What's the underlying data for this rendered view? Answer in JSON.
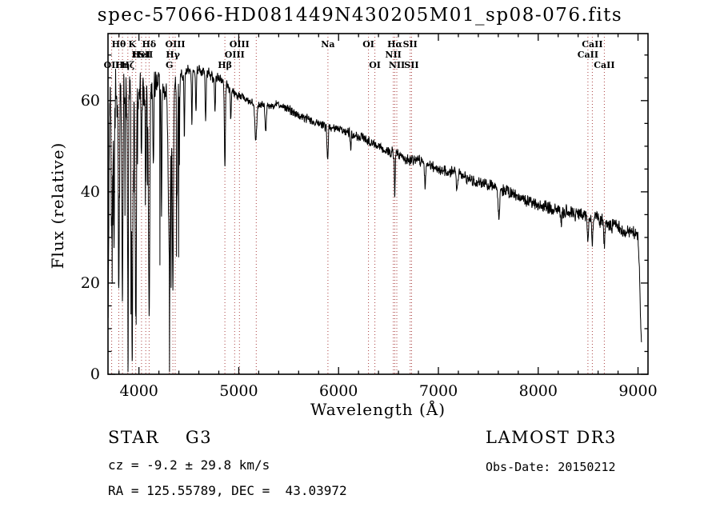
{
  "title": "spec-57066-HD081449N430205M01_sp08-076.fits",
  "chart_data": {
    "type": "line",
    "title": "spec-57066-HD081449N430205M01_sp08-076.fits",
    "xlabel": "Wavelength (Å)",
    "ylabel": "Flux (relative)",
    "xlim": [
      3690,
      9100
    ],
    "ylim": [
      0,
      74.7
    ],
    "grid": false,
    "x_major_ticks": [
      4000,
      5000,
      6000,
      7000,
      8000,
      9000
    ],
    "y_major_ticks": [
      0,
      20,
      40,
      60
    ],
    "spectrum_color": "#000000",
    "line_color": "#aa4040",
    "series": [
      {
        "name": "flux",
        "anchors": [
          [
            3690,
            8
          ],
          [
            3700,
            40
          ],
          [
            3712,
            62
          ],
          [
            3725,
            56
          ],
          [
            3740,
            58
          ],
          [
            3760,
            62
          ],
          [
            3780,
            59
          ],
          [
            3800,
            60
          ],
          [
            3830,
            62
          ],
          [
            3860,
            63
          ],
          [
            3900,
            63
          ],
          [
            3940,
            59
          ],
          [
            3980,
            61
          ],
          [
            4020,
            62
          ],
          [
            4060,
            61
          ],
          [
            4100,
            60
          ],
          [
            4150,
            63
          ],
          [
            4200,
            64
          ],
          [
            4250,
            62
          ],
          [
            4300,
            63
          ],
          [
            4350,
            64
          ],
          [
            4400,
            65
          ],
          [
            4450,
            66
          ],
          [
            4500,
            67
          ],
          [
            4550,
            66
          ],
          [
            4600,
            67
          ],
          [
            4650,
            66
          ],
          [
            4700,
            66
          ],
          [
            4750,
            65
          ],
          [
            4800,
            65
          ],
          [
            4850,
            64
          ],
          [
            4900,
            63
          ],
          [
            4950,
            62
          ],
          [
            5000,
            61
          ],
          [
            5100,
            60
          ],
          [
            5200,
            59
          ],
          [
            5300,
            59
          ],
          [
            5400,
            59
          ],
          [
            5500,
            58
          ],
          [
            5600,
            57
          ],
          [
            5700,
            56
          ],
          [
            5800,
            55
          ],
          [
            5900,
            54
          ],
          [
            6000,
            54
          ],
          [
            6100,
            53
          ],
          [
            6200,
            52
          ],
          [
            6300,
            51
          ],
          [
            6400,
            50
          ],
          [
            6500,
            49
          ],
          [
            6600,
            48
          ],
          [
            6700,
            47
          ],
          [
            6800,
            47
          ],
          [
            6900,
            46
          ],
          [
            7000,
            45
          ],
          [
            7200,
            44
          ],
          [
            7400,
            42
          ],
          [
            7600,
            41
          ],
          [
            7800,
            39
          ],
          [
            8000,
            37
          ],
          [
            8200,
            36
          ],
          [
            8400,
            35
          ],
          [
            8600,
            34
          ],
          [
            8800,
            32
          ],
          [
            8950,
            31
          ],
          [
            9000,
            30
          ],
          [
            9012,
            24
          ],
          [
            9025,
            12
          ],
          [
            9035,
            6
          ]
        ]
      }
    ],
    "absorption_features": [
      [
        3727,
        5,
        28
      ],
      [
        3750,
        4,
        30
      ],
      [
        3798,
        5,
        40
      ],
      [
        3835,
        5,
        44
      ],
      [
        3889,
        5,
        48
      ],
      [
        3933,
        6,
        52
      ],
      [
        3968,
        6,
        46
      ],
      [
        4026,
        4,
        16
      ],
      [
        4068,
        4,
        14
      ],
      [
        4102,
        6,
        48
      ],
      [
        4144,
        4,
        18
      ],
      [
        4226,
        4,
        26
      ],
      [
        4305,
        11,
        36
      ],
      [
        4340,
        6,
        44
      ],
      [
        4383,
        5,
        24
      ],
      [
        4455,
        4,
        14
      ],
      [
        4530,
        4,
        11
      ],
      [
        4571,
        4,
        9
      ],
      [
        4668,
        5,
        10
      ],
      [
        4762,
        4,
        8
      ],
      [
        4861,
        5,
        18
      ],
      [
        4920,
        4,
        7
      ],
      [
        5170,
        9,
        8
      ],
      [
        5270,
        6,
        6
      ],
      [
        5890,
        6,
        7
      ],
      [
        6122,
        4,
        4
      ],
      [
        6563,
        4,
        10
      ],
      [
        6867,
        6,
        5
      ],
      [
        7186,
        6,
        4
      ],
      [
        7605,
        8,
        6
      ],
      [
        8230,
        5,
        4
      ],
      [
        8498,
        5,
        5
      ],
      [
        8542,
        6,
        6
      ],
      [
        8662,
        6,
        5
      ]
    ],
    "noise": {
      "seed": 73,
      "step": 2,
      "spike_chance": 0.05,
      "spike_max": 32
    },
    "spectral_lines": [
      {
        "wavelength": 3798,
        "label": "Hθ",
        "row": 0
      },
      {
        "wavelength": 3933,
        "label": "K",
        "row": 0
      },
      {
        "wavelength": 4102,
        "label": "Hδ",
        "row": 0
      },
      {
        "wavelength": 4363,
        "label": "OIII",
        "row": 0
      },
      {
        "wavelength": 5007,
        "label": "OIII",
        "row": 0
      },
      {
        "wavelength": 5893,
        "label": "Na",
        "row": 0
      },
      {
        "wavelength": 6300,
        "label": "OI",
        "row": 0
      },
      {
        "wavelength": 6563,
        "label": "Hα",
        "row": 0
      },
      {
        "wavelength": 6717,
        "label": "SII",
        "row": 0
      },
      {
        "wavelength": 8542,
        "label": "CaII",
        "row": 0
      },
      {
        "wavelength": 3968,
        "label": "H",
        "row": 1
      },
      {
        "wavelength": 4026,
        "label": "HeI",
        "row": 1
      },
      {
        "wavelength": 4068,
        "label": "SII",
        "row": 1
      },
      {
        "wavelength": 4340,
        "label": "Hγ",
        "row": 1
      },
      {
        "wavelength": 4959,
        "label": "OIII",
        "row": 1
      },
      {
        "wavelength": 5175,
        "label": "",
        "row": 1
      },
      {
        "wavelength": 6548,
        "label": "NII",
        "row": 1
      },
      {
        "wavelength": 8498,
        "label": "CaII",
        "row": 1
      },
      {
        "wavelength": 3727,
        "label": "OII",
        "row": 2
      },
      {
        "wavelength": 3835,
        "label": "Hη",
        "row": 2
      },
      {
        "wavelength": 3889,
        "label": "Hζ",
        "row": 2
      },
      {
        "wavelength": 4305,
        "label": "G",
        "row": 2
      },
      {
        "wavelength": 4861,
        "label": "Hβ",
        "row": 2
      },
      {
        "wavelength": 6364,
        "label": "OI",
        "row": 2
      },
      {
        "wavelength": 6583,
        "label": "NII",
        "row": 2
      },
      {
        "wavelength": 6731,
        "label": "SII",
        "row": 2
      },
      {
        "wavelength": 8662,
        "label": "CaII",
        "row": 2
      }
    ]
  },
  "annotations": {
    "class_label": "STAR    G3",
    "survey": "LAMOST DR3",
    "cz": "cz = -9.2 ± 29.8 km/s",
    "obs_date": "Obs-Date: 20150212",
    "coords": "RA = 125.55789, DEC =  43.03972"
  }
}
